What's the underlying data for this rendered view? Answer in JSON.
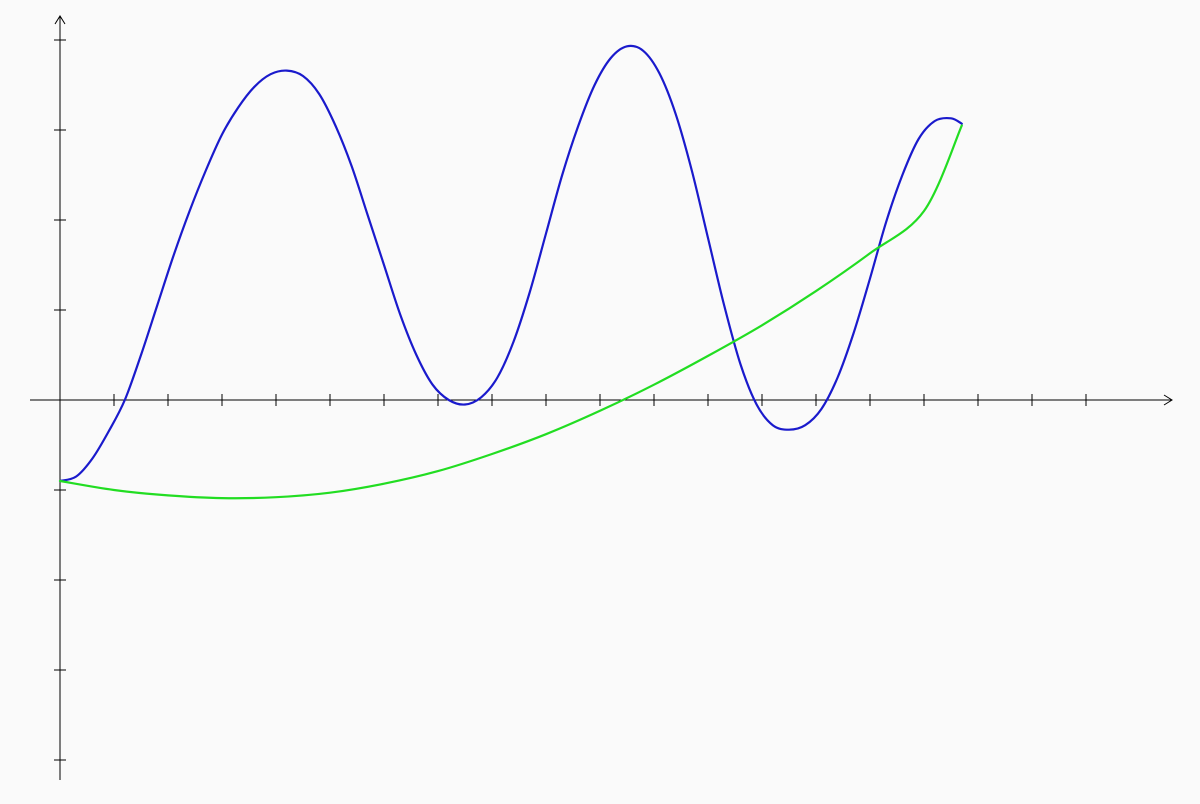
{
  "chart_data": {
    "type": "line",
    "title": "",
    "xlabel": "",
    "ylabel": "",
    "grid": false,
    "legend": "none",
    "xlim": [
      0,
      20.5
    ],
    "ylim": [
      -4.2,
      4.2
    ],
    "x_ticks": [
      1,
      2,
      3,
      4,
      5,
      6,
      7,
      8,
      9,
      10,
      11,
      12,
      13,
      14,
      15,
      16,
      17,
      18,
      19
    ],
    "y_ticks": [
      -4,
      -3,
      -2,
      -1,
      1,
      2,
      3,
      4
    ],
    "axis_color": "#000000",
    "background": "#fafafa",
    "series": [
      {
        "color": "#1a1acc",
        "points": [
          [
            0.0,
            -0.9
          ],
          [
            0.3,
            -0.85
          ],
          [
            0.6,
            -0.65
          ],
          [
            0.9,
            -0.35
          ],
          [
            1.2,
            0.0
          ],
          [
            1.5,
            0.5
          ],
          [
            1.8,
            1.05
          ],
          [
            2.1,
            1.6
          ],
          [
            2.4,
            2.1
          ],
          [
            2.7,
            2.55
          ],
          [
            3.0,
            2.95
          ],
          [
            3.3,
            3.25
          ],
          [
            3.6,
            3.48
          ],
          [
            3.9,
            3.62
          ],
          [
            4.2,
            3.66
          ],
          [
            4.5,
            3.6
          ],
          [
            4.8,
            3.4
          ],
          [
            5.1,
            3.05
          ],
          [
            5.4,
            2.6
          ],
          [
            5.7,
            2.05
          ],
          [
            6.0,
            1.5
          ],
          [
            6.3,
            0.95
          ],
          [
            6.6,
            0.5
          ],
          [
            6.9,
            0.17
          ],
          [
            7.2,
            0.0
          ],
          [
            7.5,
            -0.05
          ],
          [
            7.8,
            0.03
          ],
          [
            8.1,
            0.25
          ],
          [
            8.4,
            0.65
          ],
          [
            8.7,
            1.2
          ],
          [
            9.0,
            1.85
          ],
          [
            9.3,
            2.5
          ],
          [
            9.6,
            3.05
          ],
          [
            9.9,
            3.5
          ],
          [
            10.2,
            3.8
          ],
          [
            10.5,
            3.93
          ],
          [
            10.8,
            3.88
          ],
          [
            11.1,
            3.63
          ],
          [
            11.4,
            3.18
          ],
          [
            11.7,
            2.55
          ],
          [
            12.0,
            1.8
          ],
          [
            12.3,
            1.05
          ],
          [
            12.6,
            0.4
          ],
          [
            12.9,
            -0.05
          ],
          [
            13.2,
            -0.28
          ],
          [
            13.5,
            -0.33
          ],
          [
            13.8,
            -0.28
          ],
          [
            14.1,
            -0.1
          ],
          [
            14.4,
            0.25
          ],
          [
            14.7,
            0.75
          ],
          [
            15.0,
            1.35
          ],
          [
            15.3,
            1.98
          ],
          [
            15.6,
            2.5
          ],
          [
            15.9,
            2.9
          ],
          [
            16.2,
            3.1
          ],
          [
            16.5,
            3.13
          ],
          [
            16.7,
            3.07
          ]
        ]
      },
      {
        "color": "#22dd22",
        "points": [
          [
            0.0,
            -0.9
          ],
          [
            1.0,
            -1.0
          ],
          [
            2.0,
            -1.06
          ],
          [
            3.0,
            -1.09
          ],
          [
            4.0,
            -1.08
          ],
          [
            5.0,
            -1.03
          ],
          [
            6.0,
            -0.93
          ],
          [
            7.0,
            -0.79
          ],
          [
            8.0,
            -0.6
          ],
          [
            9.0,
            -0.38
          ],
          [
            10.0,
            -0.12
          ],
          [
            11.0,
            0.17
          ],
          [
            12.0,
            0.49
          ],
          [
            13.0,
            0.83
          ],
          [
            14.0,
            1.21
          ],
          [
            15.0,
            1.63
          ],
          [
            16.0,
            2.1
          ],
          [
            16.7,
            3.05
          ]
        ]
      }
    ]
  }
}
